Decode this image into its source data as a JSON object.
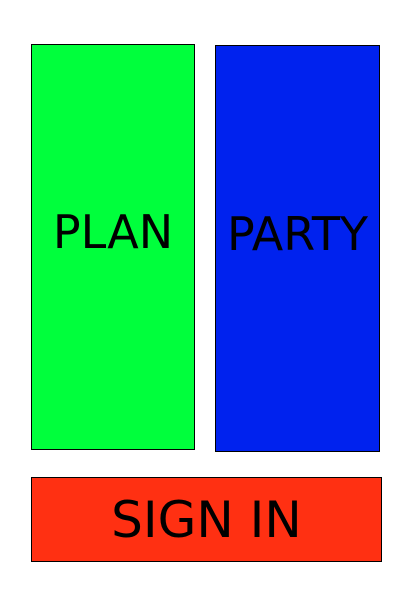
{
  "buttons": {
    "plan": {
      "label": "PLAN",
      "color": "#00ff3c"
    },
    "party": {
      "label": "PARTY",
      "color": "#0022ee"
    },
    "sign_in": {
      "label": "SIGN IN",
      "color": "#ff3012"
    }
  }
}
